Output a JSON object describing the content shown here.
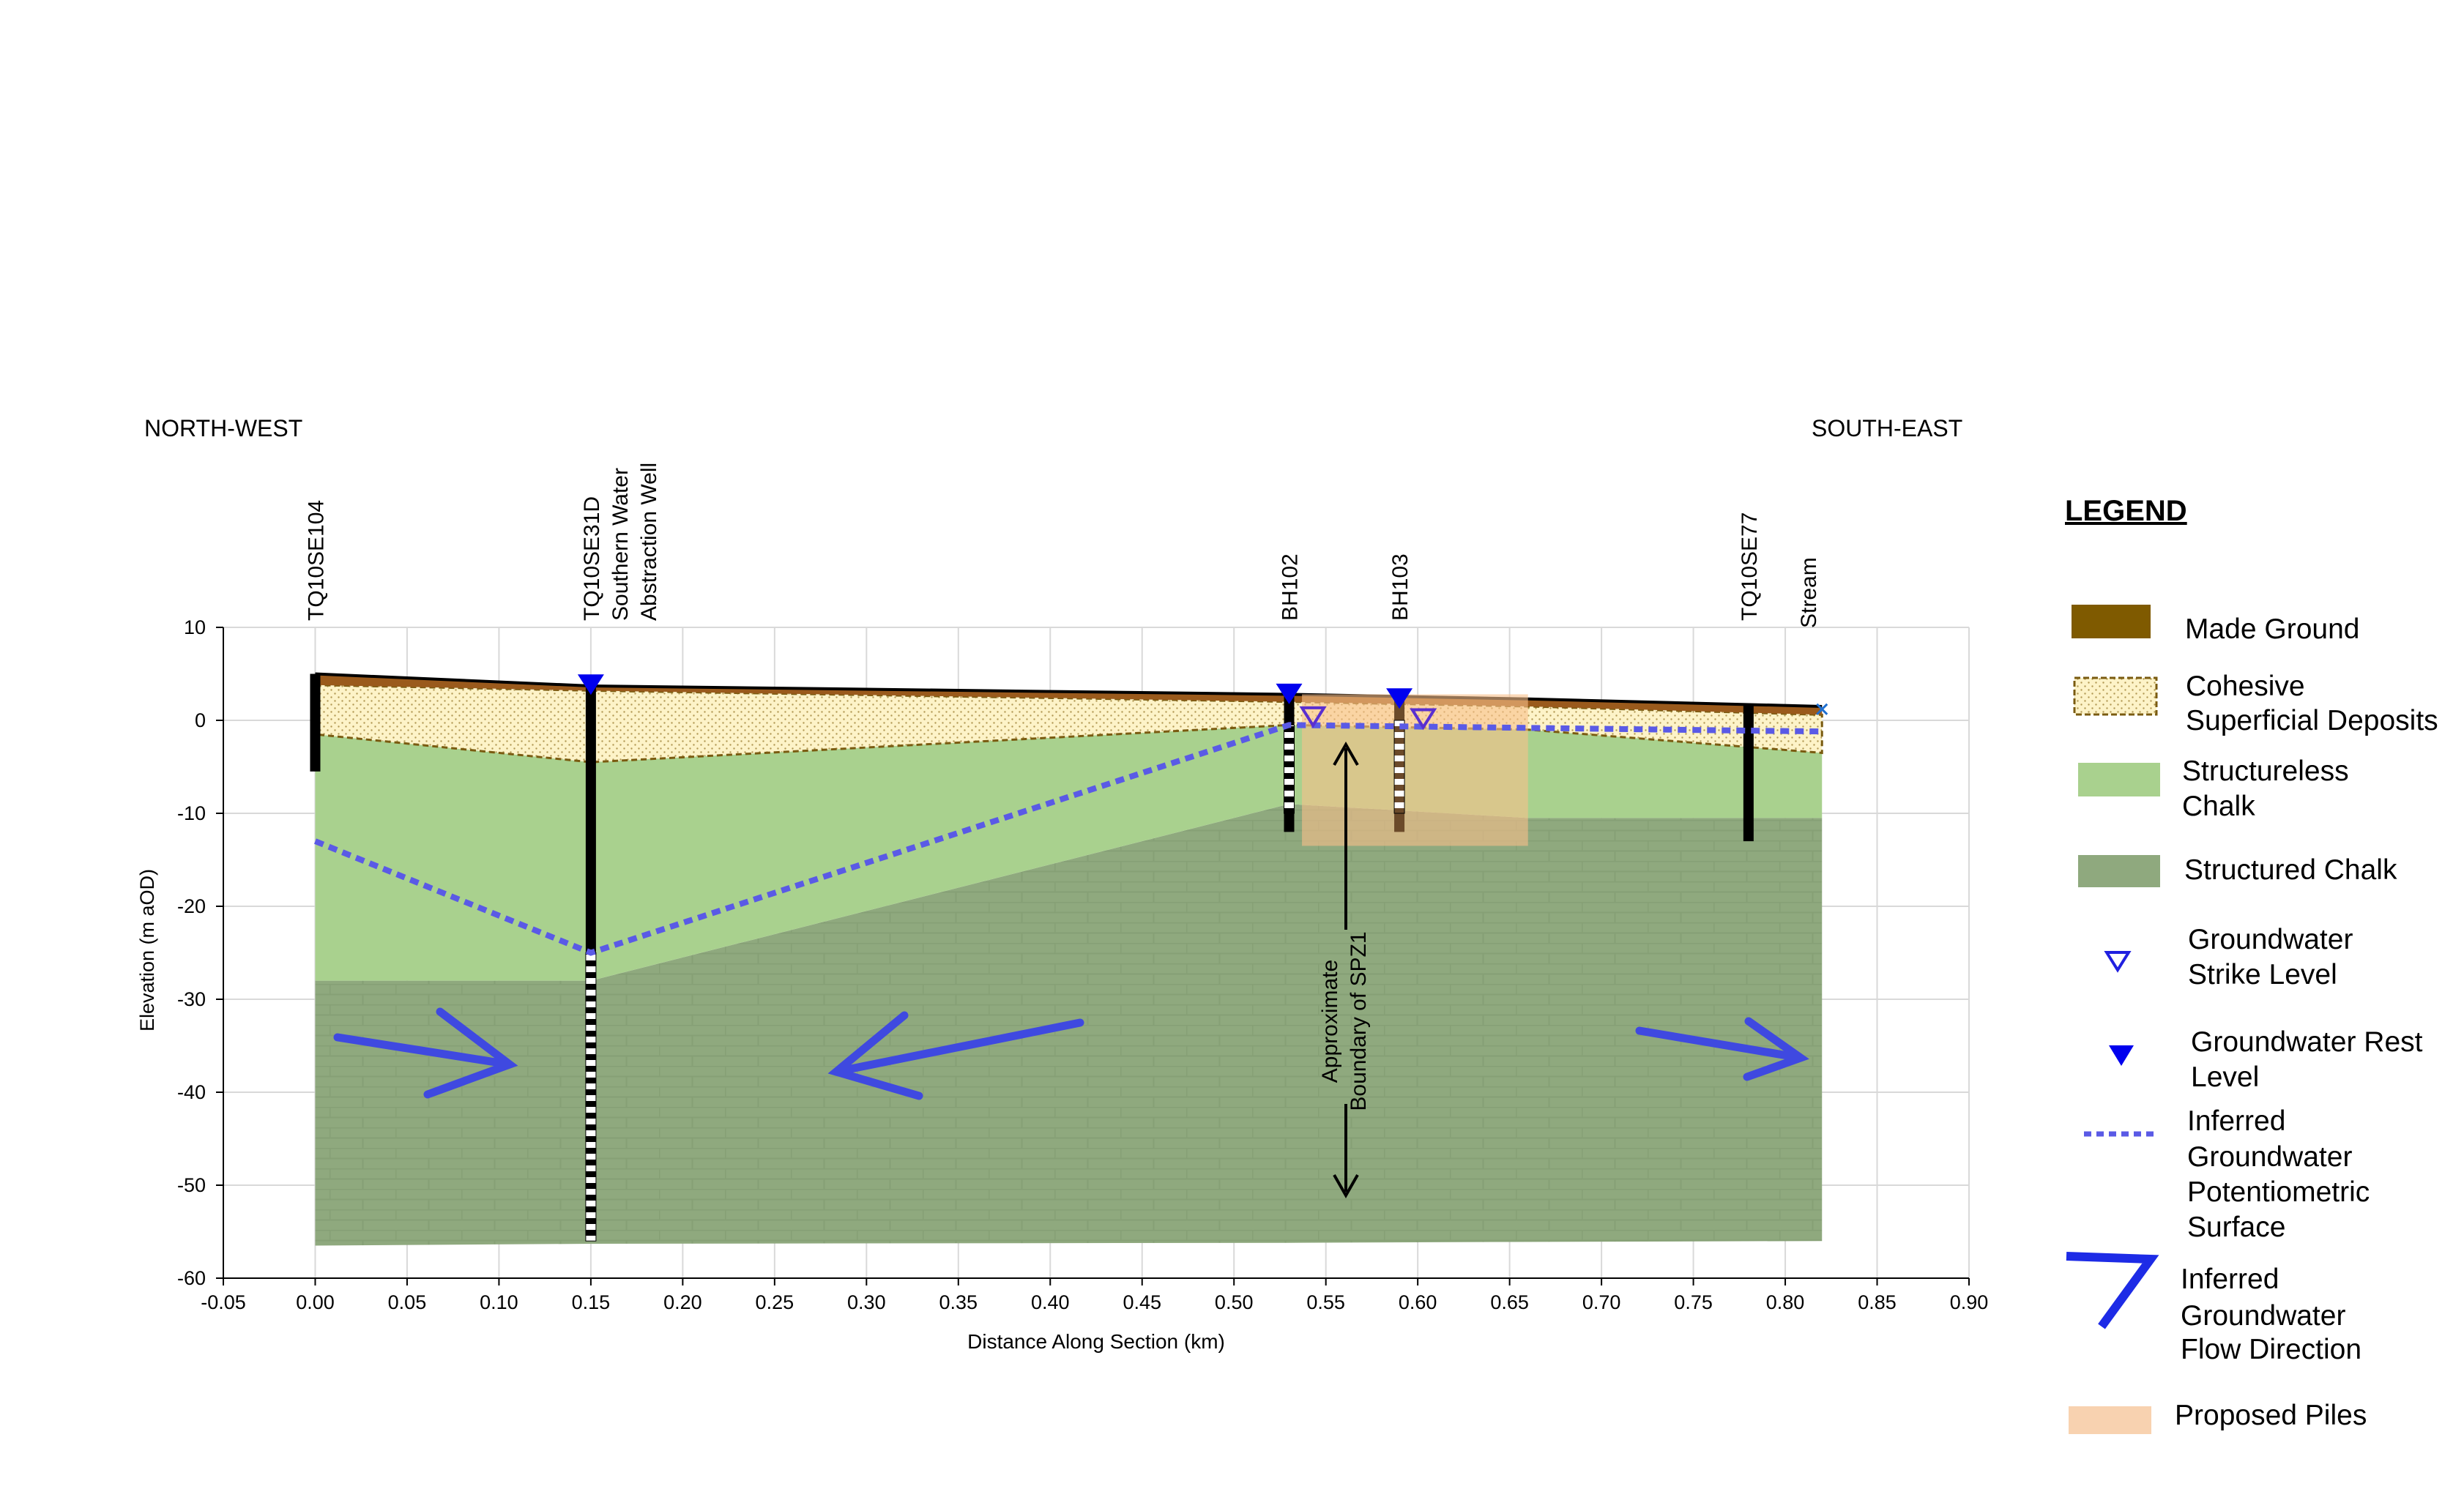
{
  "chart_data": {
    "type": "cross-section",
    "xlabel": "Distance Along Section (km)",
    "ylabel": "Elevation (m aOD)",
    "xlim": [
      -0.05,
      0.9
    ],
    "ylim": [
      -60,
      10
    ],
    "xticks": [
      -0.05,
      {
        "value": 0,
        "label": "0.00"
      },
      0.05,
      {
        "value": 0.1,
        "label": "0.10"
      },
      0.15,
      {
        "value": 0.2,
        "label": "0.20"
      },
      0.25,
      {
        "value": 0.3,
        "label": "0.30"
      },
      0.35,
      {
        "value": 0.4,
        "label": "0.40"
      },
      0.45,
      {
        "value": 0.5,
        "label": "0.50"
      },
      0.55,
      {
        "value": 0.6,
        "label": "0.60"
      },
      0.65,
      {
        "value": 0.7,
        "label": "0.70"
      },
      0.75,
      {
        "value": 0.8,
        "label": "0.80"
      },
      0.85,
      {
        "value": 0.9,
        "label": "0.90"
      }
    ],
    "yticks": [
      10,
      0,
      -10,
      -20,
      -30,
      -40,
      -50,
      -60
    ],
    "grid": true,
    "direction_labels": [
      "NORTH-WEST",
      "SOUTH-EAST"
    ],
    "layers": [
      {
        "color": "#3c7a1f",
        "pattern": "structured",
        "x": [
          0,
          0.15,
          0.53,
          0.66,
          0.82
        ],
        "top": [
          -28,
          -28,
          -9,
          -10.5,
          -10.5
        ],
        "bottom": [
          -56.5,
          -56.3,
          -56.2,
          -56.1,
          -56
        ]
      },
      {
        "color": "#a9d18e",
        "x": [
          0,
          0.15,
          0.53,
          0.66,
          0.82
        ],
        "top": [
          -1.5,
          -4.5,
          -0.5,
          -1,
          -3.5
        ],
        "bottom": [
          -28,
          -28,
          -9,
          -10.5,
          -10.5
        ]
      },
      {
        "color": "#fdf3c8",
        "pattern": "cohesive",
        "x": [
          0,
          0.15,
          0.53,
          0.66,
          0.82
        ],
        "top": [
          3.8,
          3.2,
          2,
          1.5,
          0.6
        ],
        "bottom": [
          -1.5,
          -4.5,
          -0.5,
          -1,
          -3.5
        ]
      },
      {
        "color": "#9a5a1c",
        "x": [
          0,
          0.15,
          0.53,
          0.66,
          0.82
        ],
        "top": [
          5,
          3.7,
          2.8,
          2.3,
          1.5
        ],
        "bottom": [
          3.8,
          3.2,
          2,
          1.5,
          0.6
        ]
      }
    ],
    "piles": {
      "color": "#f8c08a",
      "x": [
        0.537,
        0.66
      ],
      "y": [
        2.8,
        -13.5
      ]
    },
    "potentiometric": {
      "color": "#5a5ae6",
      "x": [
        0,
        0.15,
        0.53,
        0.82
      ],
      "y": [
        -13,
        -25,
        -0.5,
        -1.2
      ]
    },
    "boreholes": [
      {
        "label": [
          "TQ10SE104"
        ],
        "x": 0,
        "top": 5,
        "bottom": -5.5,
        "color": "#000000"
      },
      {
        "label": [
          "TQ10SE31D",
          "Southern Water",
          "Abstraction Well"
        ],
        "x": 0.15,
        "top": 3.7,
        "bottom": -56,
        "screen": [
          -25,
          -56
        ],
        "color": "#000000"
      },
      {
        "label": [
          "BH102"
        ],
        "x": 0.53,
        "top": 2.8,
        "bottom": -12,
        "screen": [
          -0.5,
          -10
        ],
        "color": "#000000"
      },
      {
        "label": [
          "BH103"
        ],
        "x": 0.59,
        "top": 2.5,
        "bottom": -12,
        "screen": [
          0,
          -10
        ],
        "color": "#6b4a2a"
      },
      {
        "label": [
          "TQ10SE77"
        ],
        "x": 0.78,
        "top": 1.8,
        "bottom": -13,
        "color": "#000000"
      }
    ],
    "stream": {
      "label": "Stream",
      "x": 0.82,
      "y": 1.2
    },
    "rest_levels": {
      "x": [
        0.15,
        0.53,
        0.59
      ],
      "y": [
        4,
        3,
        2.5
      ]
    },
    "strike_levels": {
      "x": [
        0.543,
        0.603
      ],
      "y": [
        0.4,
        0.2
      ]
    },
    "annotation": [
      "Approximate",
      "Boundary  of SPZ1"
    ],
    "legend_title": "LEGEND",
    "legend": [
      [
        "Made Ground"
      ],
      [
        "Cohesive",
        "Superficial Deposits"
      ],
      [
        "Structureless",
        "Chalk"
      ],
      [
        "Structured Chalk"
      ],
      [
        "Groundwater",
        "Strike Level"
      ],
      [
        "Groundwater Rest",
        "Level"
      ],
      [
        "Inferred",
        "Groundwater",
        "Potentiometric",
        "Surface"
      ],
      [
        "Inferred",
        "Groundwater",
        "Flow Direction"
      ],
      [
        "Proposed Piles"
      ]
    ]
  }
}
